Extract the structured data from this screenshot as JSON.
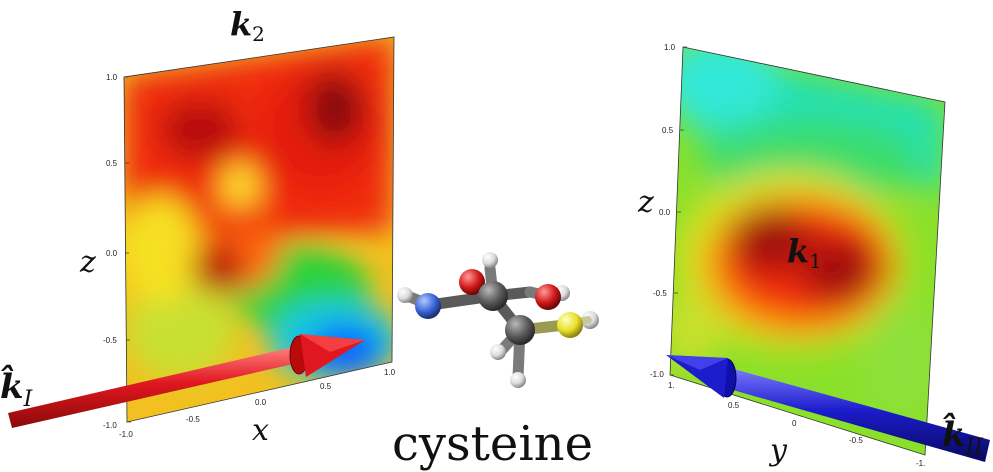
{
  "left_panel": {
    "title": "k",
    "title_sub": "2",
    "z_label": "z",
    "x_label": "x",
    "z_ticks": [
      "1.0",
      "0.5",
      "0.0",
      "-0.5",
      "-1.0"
    ],
    "x_ticks": [
      "-1.0",
      "-0.5",
      "0.0",
      "0.5",
      "1.0"
    ]
  },
  "right_panel": {
    "center_label": "k",
    "center_label_sub": "1",
    "z_label": "z",
    "y_label": "y",
    "z_ticks": [
      "1.0",
      "0.5",
      "0.0",
      "-0.5",
      "-1.0"
    ],
    "y_ticks": [
      "1.",
      "0.5",
      "0",
      "-0.5",
      "-1."
    ]
  },
  "beams": {
    "kI_hat": "k̂",
    "kI_sub": "I",
    "kII_hat": "k̂",
    "kII_sub": "II",
    "kI_color": "#e0171f",
    "kII_color": "#1c1ccc"
  },
  "molecule": {
    "name": "cysteine",
    "atom_colors": {
      "carbon": "#5a5a5a",
      "oxygen": "#d11a1a",
      "nitrogen": "#3a66d6",
      "sulfur": "#e8e02a",
      "hydrogen": "#e8e8e8"
    }
  }
}
